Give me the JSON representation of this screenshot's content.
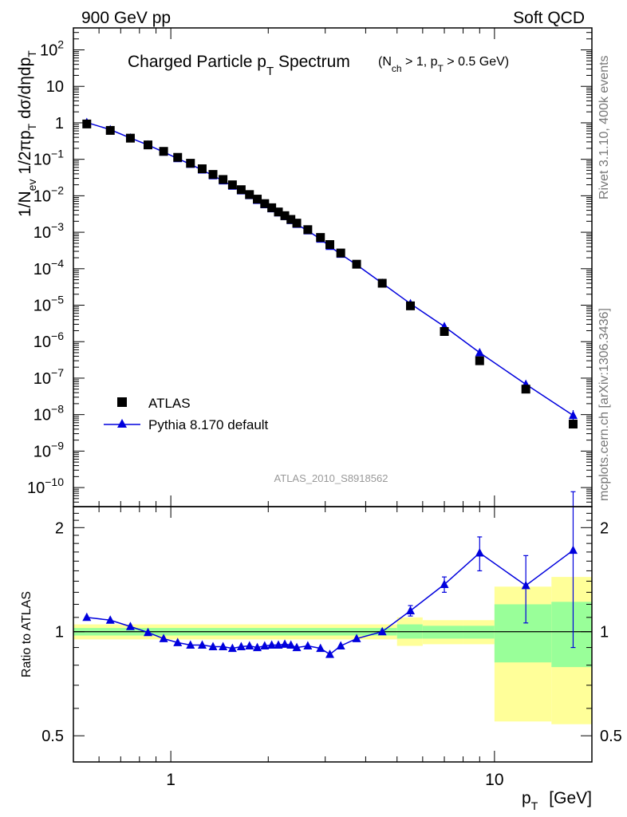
{
  "header": {
    "left": "900 GeV pp",
    "right": "Soft QCD"
  },
  "side_labels": {
    "top": "Rivet 3.1.10,  400k events",
    "bottom": "mcplots.cern.ch [arXiv:1306.3436]"
  },
  "watermark": "ATLAS_2010_S8918562",
  "colors": {
    "mc": "#0000dd",
    "data": "#000000",
    "band_inner": "#99ff99",
    "band_outer": "#ffff99"
  },
  "chart_data": [
    {
      "type": "scatter",
      "scale": "log-log",
      "title": "Charged Particle p_T Spectrum",
      "title_main": "Charged Particle p",
      "title_sub": "T",
      "title_rest": " Spectrum",
      "title_cond": "(N",
      "title_cond_sub": "ch",
      "title_cond_mid": " > 1, p",
      "title_cond_sub2": "T",
      "title_cond_end": " > 0.5 GeV)",
      "ylabel": "1/N_ev 1/2πp_T dσ/dηdp_T",
      "ylabel_parts": [
        "1/N",
        "ev",
        " 1/2πp",
        "T",
        " dσ/dηdp",
        "T"
      ],
      "xlim": [
        0.5,
        20
      ],
      "ylim": [
        3e-11,
        400
      ],
      "yticks": [
        {
          "v": 1e-10,
          "base": "10",
          "exp": "−10"
        },
        {
          "v": 1e-09,
          "base": "10",
          "exp": "−9"
        },
        {
          "v": 1e-08,
          "base": "10",
          "exp": "−8"
        },
        {
          "v": 1e-07,
          "base": "10",
          "exp": "−7"
        },
        {
          "v": 1e-06,
          "base": "10",
          "exp": "−6"
        },
        {
          "v": 1e-05,
          "base": "10",
          "exp": "−5"
        },
        {
          "v": 0.0001,
          "base": "10",
          "exp": "−4"
        },
        {
          "v": 0.001,
          "base": "10",
          "exp": "−3"
        },
        {
          "v": 0.01,
          "base": "10",
          "exp": "−2"
        },
        {
          "v": 0.1,
          "base": "10",
          "exp": "−1"
        },
        {
          "v": 1,
          "base": "1",
          "exp": ""
        },
        {
          "v": 10,
          "base": "10",
          "exp": ""
        },
        {
          "v": 100,
          "base": "10",
          "exp": "2"
        }
      ],
      "legend": [
        {
          "label": "ATLAS",
          "marker": "square"
        },
        {
          "label": "Pythia 8.170 default",
          "marker": "triangle-line"
        }
      ],
      "x": [
        0.55,
        0.65,
        0.75,
        0.85,
        0.95,
        1.05,
        1.15,
        1.25,
        1.35,
        1.45,
        1.55,
        1.65,
        1.75,
        1.85,
        1.95,
        2.05,
        2.15,
        2.25,
        2.35,
        2.45,
        2.65,
        2.9,
        3.1,
        3.35,
        3.75,
        4.5,
        5.5,
        7.0,
        9.0,
        12.5,
        17.5
      ],
      "series": [
        {
          "name": "ATLAS",
          "values": [
            0.93,
            0.62,
            0.38,
            0.248,
            0.165,
            0.113,
            0.078,
            0.055,
            0.0385,
            0.028,
            0.02,
            0.0147,
            0.0108,
            0.0081,
            0.0061,
            0.0047,
            0.0036,
            0.00285,
            0.00225,
            0.00178,
            0.00118,
            0.00072,
            0.00046,
            0.00027,
            0.000133,
            4e-05,
            9.6e-06,
            1.9e-06,
            3e-07,
            5e-08,
            5.5e-09
          ]
        },
        {
          "name": "Pythia 8.170 default",
          "values": [
            1.02,
            0.65,
            0.385,
            0.248,
            0.158,
            0.105,
            0.073,
            0.051,
            0.0355,
            0.0258,
            0.0184,
            0.0137,
            0.0101,
            0.0075,
            0.0057,
            0.0044,
            0.0034,
            0.0027,
            0.0021,
            0.00165,
            0.0011,
            0.00065,
            0.00041,
            0.00025,
            0.000128,
            4e-05,
            1.1e-05,
            2.6e-06,
            5e-07,
            6.8e-08,
            9.5e-09
          ]
        }
      ]
    },
    {
      "type": "line",
      "scale": "log-x",
      "ylabel": "Ratio to ATLAS",
      "xlabel": "p_T  [GeV]",
      "xlabel_main": "p",
      "xlabel_sub": "T",
      "xlabel_unit": "[GeV]",
      "xlim": [
        0.5,
        20
      ],
      "ylim": [
        0.42,
        2.3
      ],
      "yticks": [
        {
          "v": 0.5,
          "label": "0.5"
        },
        {
          "v": 1,
          "label": "1"
        },
        {
          "v": 2,
          "label": "2"
        }
      ],
      "xticks": [
        {
          "v": 1,
          "label": "1"
        },
        {
          "v": 10,
          "label": "10"
        }
      ],
      "bands": [
        {
          "x0": 0.5,
          "x1": 5.0,
          "inner": [
            0.975,
            1.025
          ],
          "outer": [
            0.95,
            1.05
          ]
        },
        {
          "x0": 5.0,
          "x1": 6.0,
          "inner": [
            0.955,
            1.05
          ],
          "outer": [
            0.91,
            1.1
          ]
        },
        {
          "x0": 6.0,
          "x1": 8.0,
          "inner": [
            0.955,
            1.04
          ],
          "outer": [
            0.92,
            1.08
          ]
        },
        {
          "x0": 8.0,
          "x1": 10.0,
          "inner": [
            0.955,
            1.04
          ],
          "outer": [
            0.92,
            1.08
          ]
        },
        {
          "x0": 10.0,
          "x1": 15.0,
          "inner": [
            0.815,
            1.2
          ],
          "outer": [
            0.55,
            1.35
          ]
        },
        {
          "x0": 15.0,
          "x1": 20.0,
          "inner": [
            0.79,
            1.22
          ],
          "outer": [
            0.54,
            1.44
          ]
        }
      ],
      "series": [
        {
          "name": "Pythia 8.170 default",
          "values": [
            1.1,
            1.08,
            1.035,
            0.995,
            0.955,
            0.93,
            0.915,
            0.915,
            0.905,
            0.905,
            0.895,
            0.905,
            0.91,
            0.9,
            0.91,
            0.915,
            0.915,
            0.92,
            0.915,
            0.9,
            0.91,
            0.895,
            0.86,
            0.91,
            0.955,
            1.0,
            1.15,
            1.37,
            1.69,
            1.36,
            1.72
          ],
          "err": [
            0,
            0,
            0,
            0,
            0,
            0,
            0,
            0,
            0,
            0,
            0,
            0,
            0,
            0,
            0,
            0,
            0,
            0,
            0,
            0,
            0,
            0,
            0,
            0,
            0,
            0,
            0.04,
            0.07,
            0.19,
            0.3,
            0.82
          ]
        }
      ]
    }
  ]
}
